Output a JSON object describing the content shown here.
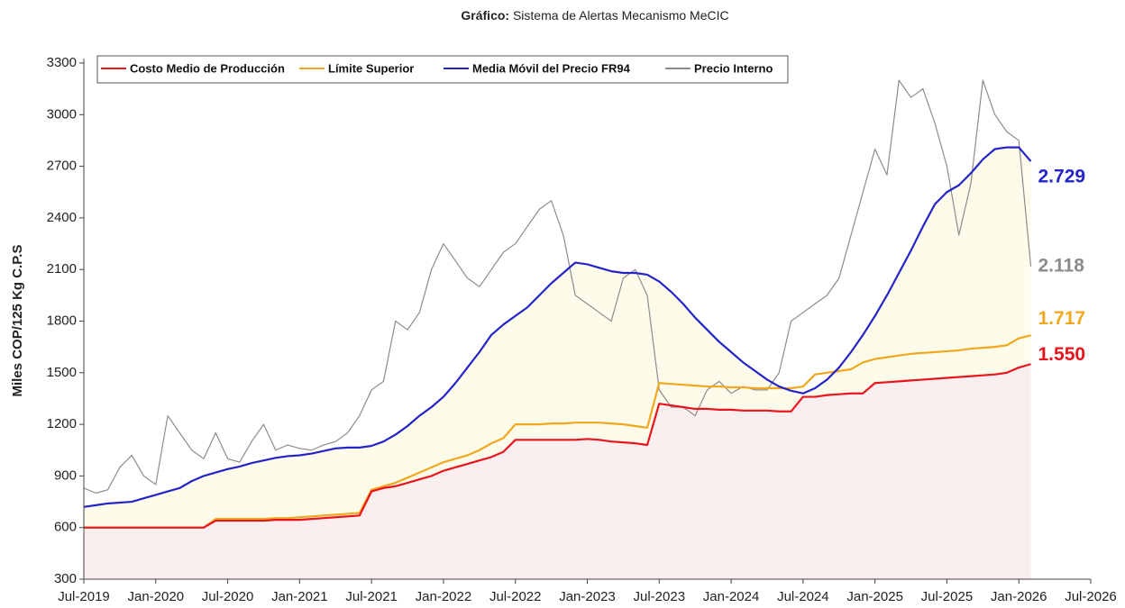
{
  "chart_data": {
    "type": "line",
    "title_prefix": "Gráfico:",
    "title": "Sistema de Alertas Mecanismo MeCIC",
    "y_label": "Miles COP/125 Kg C.P.S",
    "x": [
      "2019-07",
      "2019-08",
      "2019-09",
      "2019-10",
      "2019-11",
      "2019-12",
      "2020-01",
      "2020-02",
      "2020-03",
      "2020-04",
      "2020-05",
      "2020-06",
      "2020-07",
      "2020-08",
      "2020-09",
      "2020-10",
      "2020-11",
      "2020-12",
      "2021-01",
      "2021-02",
      "2021-03",
      "2021-04",
      "2021-05",
      "2021-06",
      "2021-07",
      "2021-08",
      "2021-09",
      "2021-10",
      "2021-11",
      "2021-12",
      "2022-01",
      "2022-02",
      "2022-03",
      "2022-04",
      "2022-05",
      "2022-06",
      "2022-07",
      "2022-08",
      "2022-09",
      "2022-10",
      "2022-11",
      "2022-12",
      "2023-01",
      "2023-02",
      "2023-03",
      "2023-04",
      "2023-05",
      "2023-06",
      "2023-07",
      "2023-08",
      "2023-09",
      "2023-10",
      "2023-11",
      "2023-12",
      "2024-01",
      "2024-02",
      "2024-03",
      "2024-04",
      "2024-05",
      "2024-06",
      "2024-07",
      "2024-08",
      "2024-09",
      "2024-10",
      "2024-11",
      "2024-12",
      "2025-01",
      "2025-02",
      "2025-03",
      "2025-04",
      "2025-05",
      "2025-06",
      "2025-07",
      "2025-08",
      "2025-09",
      "2025-10",
      "2025-11",
      "2025-12",
      "2026-01",
      "2026-02"
    ],
    "series": [
      {
        "name": "Costo Medio de Producción",
        "color": "#e8141e",
        "fill": "#fbeeee",
        "last_label": "1.550",
        "values": [
          600,
          600,
          600,
          600,
          600,
          600,
          600,
          600,
          600,
          600,
          600,
          640,
          640,
          640,
          640,
          640,
          645,
          645,
          645,
          650,
          655,
          660,
          665,
          670,
          810,
          830,
          840,
          860,
          880,
          900,
          930,
          950,
          970,
          990,
          1010,
          1040,
          1110,
          1110,
          1110,
          1110,
          1110,
          1110,
          1115,
          1110,
          1100,
          1095,
          1090,
          1080,
          1320,
          1310,
          1300,
          1290,
          1290,
          1285,
          1285,
          1280,
          1280,
          1280,
          1275,
          1275,
          1360,
          1360,
          1370,
          1375,
          1380,
          1380,
          1440,
          1445,
          1450,
          1455,
          1460,
          1465,
          1470,
          1475,
          1480,
          1485,
          1490,
          1500,
          1530,
          1550
        ]
      },
      {
        "name": "Límite Superior",
        "color": "#f0a81e",
        "last_label": "1.717",
        "values": [
          600,
          600,
          600,
          600,
          600,
          600,
          600,
          600,
          600,
          600,
          600,
          650,
          650,
          650,
          650,
          650,
          655,
          655,
          660,
          665,
          670,
          675,
          680,
          685,
          820,
          840,
          860,
          890,
          920,
          950,
          980,
          1000,
          1020,
          1050,
          1090,
          1120,
          1200,
          1200,
          1200,
          1205,
          1205,
          1210,
          1210,
          1210,
          1205,
          1200,
          1190,
          1180,
          1440,
          1435,
          1430,
          1425,
          1420,
          1420,
          1415,
          1415,
          1410,
          1410,
          1410,
          1410,
          1420,
          1490,
          1500,
          1510,
          1520,
          1560,
          1580,
          1590,
          1600,
          1610,
          1615,
          1620,
          1625,
          1630,
          1640,
          1645,
          1650,
          1660,
          1700,
          1717
        ]
      },
      {
        "name": "Media Móvil del Precio FR94",
        "color": "#2424c8",
        "fill": "#fdfbea",
        "last_label": "2.729",
        "values": [
          720,
          730,
          740,
          745,
          750,
          770,
          790,
          810,
          830,
          870,
          900,
          920,
          940,
          955,
          975,
          990,
          1005,
          1015,
          1020,
          1030,
          1045,
          1060,
          1065,
          1065,
          1075,
          1100,
          1140,
          1190,
          1250,
          1300,
          1360,
          1440,
          1530,
          1620,
          1720,
          1780,
          1830,
          1880,
          1950,
          2020,
          2080,
          2140,
          2130,
          2110,
          2090,
          2080,
          2080,
          2070,
          2030,
          1970,
          1900,
          1820,
          1750,
          1680,
          1620,
          1560,
          1510,
          1460,
          1420,
          1395,
          1380,
          1410,
          1460,
          1530,
          1620,
          1720,
          1830,
          1950,
          2080,
          2210,
          2350,
          2480,
          2550,
          2590,
          2660,
          2740,
          2800,
          2810,
          2810,
          2729
        ]
      },
      {
        "name": "Precio Interno",
        "color": "#8c8c8c",
        "last_label": "2.118",
        "values": [
          830,
          800,
          820,
          950,
          1020,
          900,
          850,
          1250,
          1150,
          1050,
          1000,
          1150,
          1000,
          980,
          1100,
          1200,
          1050,
          1080,
          1060,
          1050,
          1080,
          1100,
          1150,
          1250,
          1400,
          1450,
          1800,
          1750,
          1850,
          2100,
          2250,
          2150,
          2050,
          2000,
          2100,
          2200,
          2250,
          2350,
          2450,
          2500,
          2300,
          1950,
          1900,
          1850,
          1800,
          2050,
          2100,
          1950,
          1400,
          1300,
          1300,
          1250,
          1400,
          1450,
          1380,
          1420,
          1400,
          1400,
          1500,
          1800,
          1850,
          1900,
          1950,
          2050,
          2300,
          2550,
          2800,
          2650,
          3200,
          3100,
          3150,
          2950,
          2700,
          2300,
          2600,
          3200,
          3000,
          2900,
          2850,
          2118
        ]
      }
    ],
    "xlim": [
      "2019-07",
      "2026-07"
    ],
    "xticks": [
      {
        "value": "2019-07",
        "label": "Jul-2019"
      },
      {
        "value": "2020-01",
        "label": "Jan-2020"
      },
      {
        "value": "2020-07",
        "label": "Jul-2020"
      },
      {
        "value": "2021-01",
        "label": "Jan-2021"
      },
      {
        "value": "2021-07",
        "label": "Jul-2021"
      },
      {
        "value": "2022-01",
        "label": "Jan-2022"
      },
      {
        "value": "2022-07",
        "label": "Jul-2022"
      },
      {
        "value": "2023-01",
        "label": "Jan-2023"
      },
      {
        "value": "2023-07",
        "label": "Jul-2023"
      },
      {
        "value": "2024-01",
        "label": "Jan-2024"
      },
      {
        "value": "2024-07",
        "label": "Jul-2024"
      },
      {
        "value": "2025-01",
        "label": "Jan-2025"
      },
      {
        "value": "2025-07",
        "label": "Jul-2025"
      },
      {
        "value": "2026-01",
        "label": "Jan-2026"
      },
      {
        "value": "2026-07",
        "label": "Jul-2026"
      }
    ],
    "ylim": [
      300,
      3300
    ],
    "yticks": [
      300,
      600,
      900,
      1200,
      1500,
      1800,
      2100,
      2400,
      2700,
      3000,
      3300
    ],
    "legend": "top-left"
  }
}
